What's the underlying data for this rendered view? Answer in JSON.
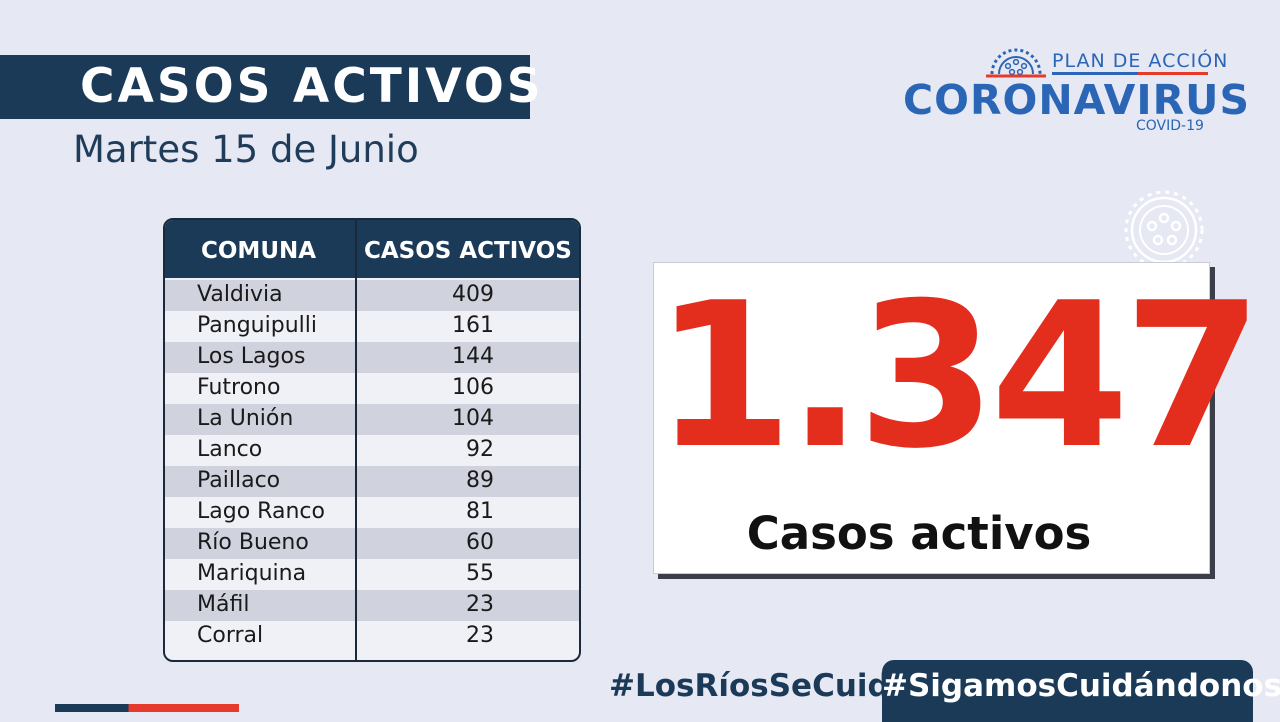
{
  "header": {
    "title": "CASOS ACTIVOS",
    "date": "Martes 15 de Junio"
  },
  "logo": {
    "plan": "PLAN DE ACCIÓN",
    "main": "CORONAVIRUS",
    "sub": "COVID-19",
    "icon": "virus-icon"
  },
  "table": {
    "headers": [
      "COMUNA",
      "CASOS ACTIVOS"
    ],
    "rows": [
      {
        "comuna": "Valdivia",
        "casos": "409"
      },
      {
        "comuna": "Panguipulli",
        "casos": "161"
      },
      {
        "comuna": "Los Lagos",
        "casos": "144"
      },
      {
        "comuna": "Futrono",
        "casos": "106"
      },
      {
        "comuna": "La Unión",
        "casos": "104"
      },
      {
        "comuna": "Lanco",
        "casos": "92"
      },
      {
        "comuna": "Paillaco",
        "casos": "89"
      },
      {
        "comuna": "Lago Ranco",
        "casos": "81"
      },
      {
        "comuna": "Río Bueno",
        "casos": "60"
      },
      {
        "comuna": "Mariquina",
        "casos": "55"
      },
      {
        "comuna": "Máfil",
        "casos": "23"
      },
      {
        "comuna": "Corral",
        "casos": "23"
      }
    ]
  },
  "total": {
    "value": "1.347",
    "label": "Casos activos"
  },
  "footer": {
    "hashtag1": "#LosRíosSeCuida",
    "hashtag2": "#SigamosCuidándonos"
  },
  "colors": {
    "navy": "#1b3a57",
    "red": "#e32d1d",
    "blue": "#2a66b5",
    "background": "#e6e8f3"
  }
}
